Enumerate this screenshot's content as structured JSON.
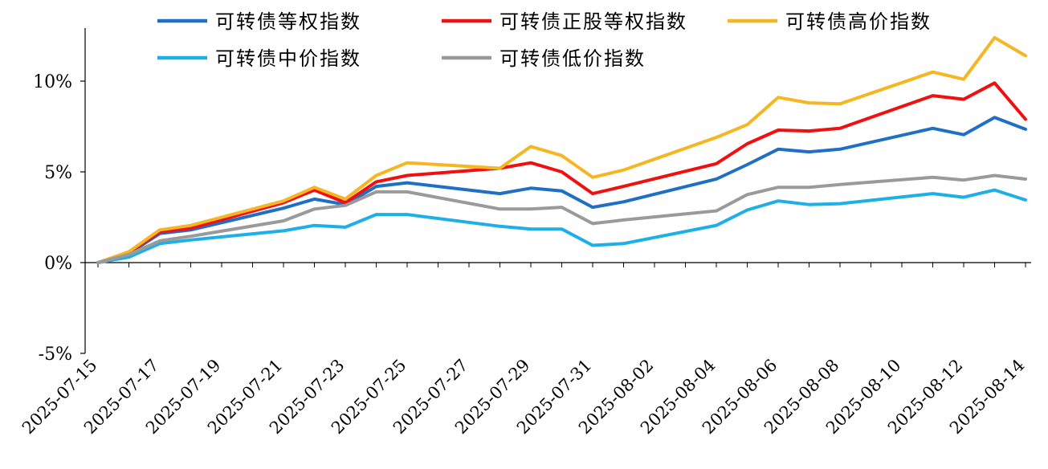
{
  "chart_data": {
    "type": "line",
    "title": "",
    "xlabel": "",
    "ylabel": "",
    "ylim": [
      -5,
      12.5
    ],
    "y_ticks": [
      -5,
      0,
      5,
      10
    ],
    "y_tick_labels": [
      "-5%",
      "0%",
      "5%",
      "10%"
    ],
    "x_tick_labels": [
      "2025-07-15",
      "2025-07-17",
      "2025-07-19",
      "2025-07-21",
      "2025-07-23",
      "2025-07-25",
      "2025-07-27",
      "2025-07-29",
      "2025-07-31",
      "2025-08-02",
      "2025-08-04",
      "2025-08-06",
      "2025-08-08",
      "2025-08-10",
      "2025-08-12",
      "2025-08-14"
    ],
    "x_range": [
      "2025-07-15",
      "2025-08-14"
    ],
    "grid": false,
    "legend_position": "top",
    "x": [
      "2025-07-15",
      "2025-07-16",
      "2025-07-17",
      "2025-07-18",
      "2025-07-21",
      "2025-07-22",
      "2025-07-23",
      "2025-07-24",
      "2025-07-25",
      "2025-07-28",
      "2025-07-29",
      "2025-07-30",
      "2025-07-31",
      "2025-08-01",
      "2025-08-04",
      "2025-08-05",
      "2025-08-06",
      "2025-08-07",
      "2025-08-08",
      "2025-08-11",
      "2025-08-12",
      "2025-08-13",
      "2025-08-14"
    ],
    "series": [
      {
        "name": "可转债等权指数",
        "color": "#1f6fc5",
        "values": [
          0,
          0.5,
          1.6,
          1.8,
          3.0,
          3.5,
          3.2,
          4.2,
          4.4,
          3.8,
          4.1,
          3.95,
          3.05,
          3.35,
          4.6,
          5.4,
          6.25,
          6.1,
          6.25,
          7.4,
          7.05,
          8.0,
          7.35
        ]
      },
      {
        "name": "可转债正股等权指数",
        "color": "#f01010",
        "values": [
          0,
          0.55,
          1.7,
          1.9,
          3.3,
          4.0,
          3.3,
          4.45,
          4.8,
          5.2,
          5.5,
          5.0,
          3.8,
          4.2,
          5.45,
          6.55,
          7.3,
          7.25,
          7.4,
          9.2,
          9.0,
          9.9,
          7.9
        ]
      },
      {
        "name": "可转债高价指数",
        "color": "#f5b622",
        "values": [
          0,
          0.6,
          1.8,
          2.05,
          3.4,
          4.15,
          3.5,
          4.8,
          5.5,
          5.2,
          6.4,
          5.9,
          4.7,
          5.1,
          6.9,
          7.6,
          9.1,
          8.8,
          8.75,
          10.5,
          10.1,
          12.4,
          11.4
        ]
      },
      {
        "name": "可转债中价指数",
        "color": "#1eaee8",
        "values": [
          0,
          0.3,
          1.05,
          1.25,
          1.75,
          2.05,
          1.95,
          2.65,
          2.65,
          2.0,
          1.85,
          1.85,
          0.95,
          1.05,
          2.05,
          2.9,
          3.4,
          3.2,
          3.25,
          3.8,
          3.6,
          4.0,
          3.45
        ]
      },
      {
        "name": "可转债低价指数",
        "color": "#9a9a9a",
        "values": [
          0,
          0.45,
          1.2,
          1.45,
          2.3,
          2.95,
          3.15,
          3.9,
          3.9,
          2.95,
          2.95,
          3.05,
          2.15,
          2.35,
          2.85,
          3.75,
          4.15,
          4.15,
          4.3,
          4.7,
          4.55,
          4.8,
          4.6
        ]
      }
    ]
  }
}
